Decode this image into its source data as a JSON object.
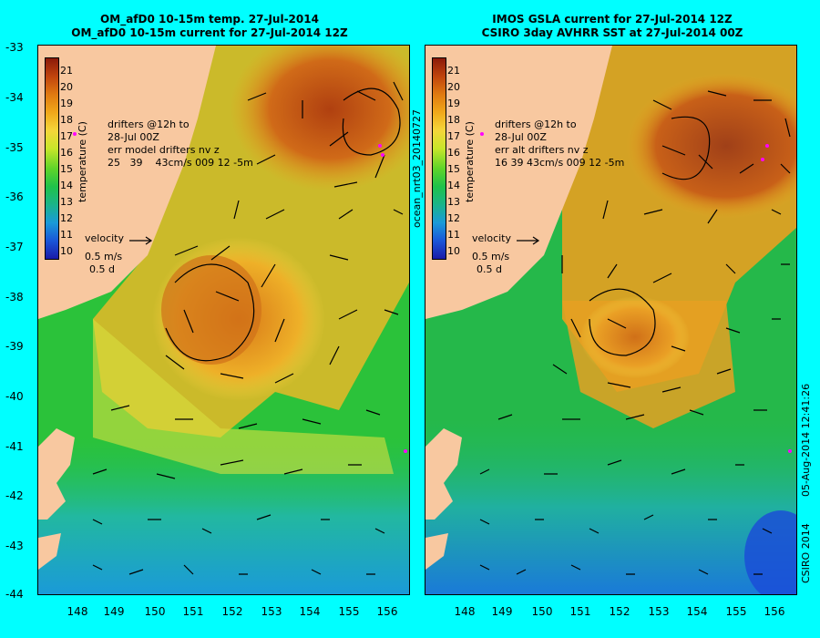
{
  "left_panel": {
    "title_line1": "OM_afD0 10-15m temp. 27-Jul-2014",
    "title_line2": "OM_afD0 10-15m current for 27-Jul-2014 12Z",
    "drifter_text_1": "drifters @12h to",
    "drifter_text_2": "28-Jul 00Z",
    "err_text": "err model drifters nv z",
    "stats_text": "25   39    43cm/s 009 12 -5m",
    "velocity_label": "velocity",
    "velocity_scale": "0.5 m/s",
    "velocity_time": "0.5 d",
    "colorbar_label": "temperature (C)"
  },
  "right_panel": {
    "title_line1": "IMOS GSLA current for 27-Jul-2014 12Z",
    "title_line2": "CSIRO 3day AVHRR SST at 27-Jul-2014 00Z",
    "drifter_text_1": "drifters @12h to",
    "drifter_text_2": "28-Jul 00Z",
    "err_text": "err alt drifters nv z",
    "stats_text": "16 39 43cm/s 009 12 -5m",
    "velocity_label": "velocity",
    "velocity_scale": "0.5 m/s",
    "velocity_time": "0.5 d",
    "colorbar_label": "temperature (C)"
  },
  "vertical_texts": {
    "run_id": "ocean_nrt03_20140727",
    "timestamp": "05-Aug-2014 12:41:26",
    "copyright": "CSIRO 2014"
  },
  "lat_ticks": [
    "-33",
    "-34",
    "-35",
    "-36",
    "-37",
    "-38",
    "-39",
    "-40",
    "-41",
    "-42",
    "-43",
    "-44"
  ],
  "lon_ticks": [
    "148",
    "149",
    "150",
    "151",
    "152",
    "153",
    "154",
    "155",
    "156"
  ],
  "colorbar_ticks": [
    "21",
    "20",
    "19",
    "18",
    "17",
    "16",
    "15",
    "14",
    "13",
    "12",
    "11",
    "10"
  ],
  "colorbar_colors": [
    "#8b1a0a",
    "#c0440d",
    "#e07a10",
    "#f0a81a",
    "#f5d63a",
    "#c8e62a",
    "#5fd42a",
    "#1fc24a",
    "#1bb48a",
    "#1a9ad8",
    "#1a56d8",
    "#1a1aa8"
  ],
  "colors": {
    "background": "#00ffff",
    "land": "#f8c8a0",
    "ocean_cool": "#2bc23a",
    "ocean_warm": "#e8a020",
    "ocean_hot": "#b04010",
    "ocean_cold": "#1a9ad8",
    "arrow": "#000000",
    "drifter": "#ff00ff"
  }
}
